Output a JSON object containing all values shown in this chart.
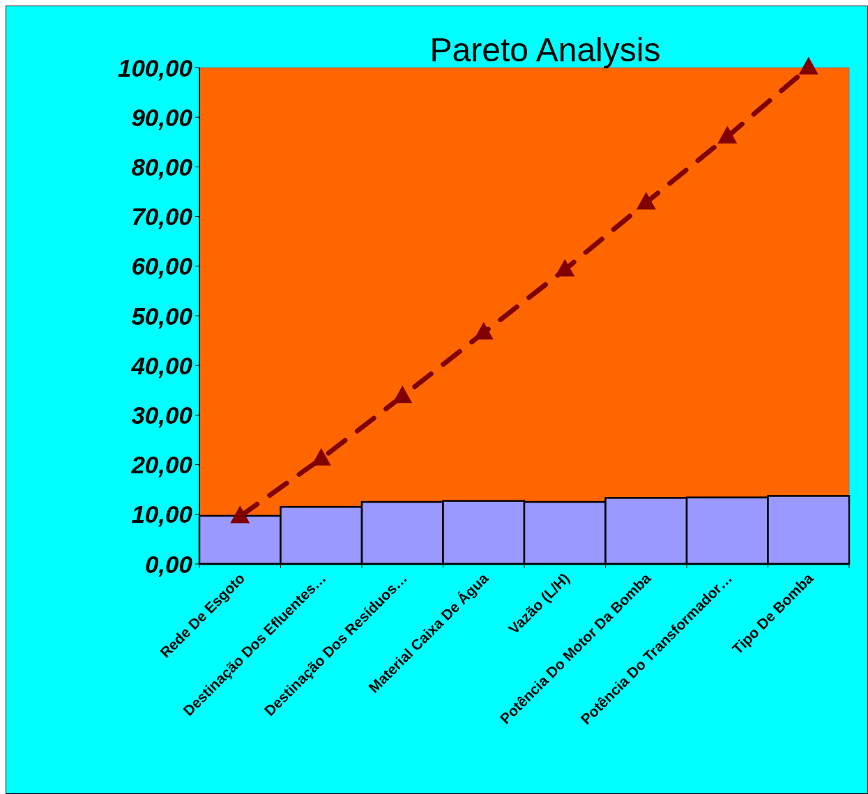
{
  "chart_data": {
    "type": "bar",
    "title": "Pareto Analysis",
    "categories": [
      "Rede De Esgoto",
      "Destinação Dos Efluentes…",
      "Destinação Dos Resíduos…",
      "Material Caixa De Água",
      "Vazão (L/H)",
      "Potência Do Motor Da Bomba",
      "Potência Do Transformador…",
      "Tipo De Bomba"
    ],
    "series": [
      {
        "color": "#9999ff",
        "values": [
          9.7,
          11.5,
          12.5,
          12.7,
          12.5,
          13.3,
          13.4,
          13.7
        ]
      },
      {
        "type": "line",
        "color": "#800000",
        "values": [
          9.6,
          21.2,
          33.8,
          46.6,
          59.3,
          72.8,
          86.1,
          100
        ]
      }
    ],
    "ylim": [
      0,
      100
    ],
    "yticks": [
      {
        "value": 0,
        "label": "0,00"
      },
      {
        "value": 10,
        "label": "10,00"
      },
      {
        "value": 20,
        "label": "20,00"
      },
      {
        "value": 30,
        "label": "30,00"
      },
      {
        "value": 40,
        "label": "40,00"
      },
      {
        "value": 50,
        "label": "50,00"
      },
      {
        "value": 60,
        "label": "60,00"
      },
      {
        "value": 70,
        "label": "70,00"
      },
      {
        "value": 80,
        "label": "80,00"
      },
      {
        "value": 90,
        "label": "90,00"
      },
      {
        "value": 100,
        "label": "100,00"
      }
    ],
    "grid": false,
    "marker": "triangle",
    "line_style": "dashed"
  }
}
